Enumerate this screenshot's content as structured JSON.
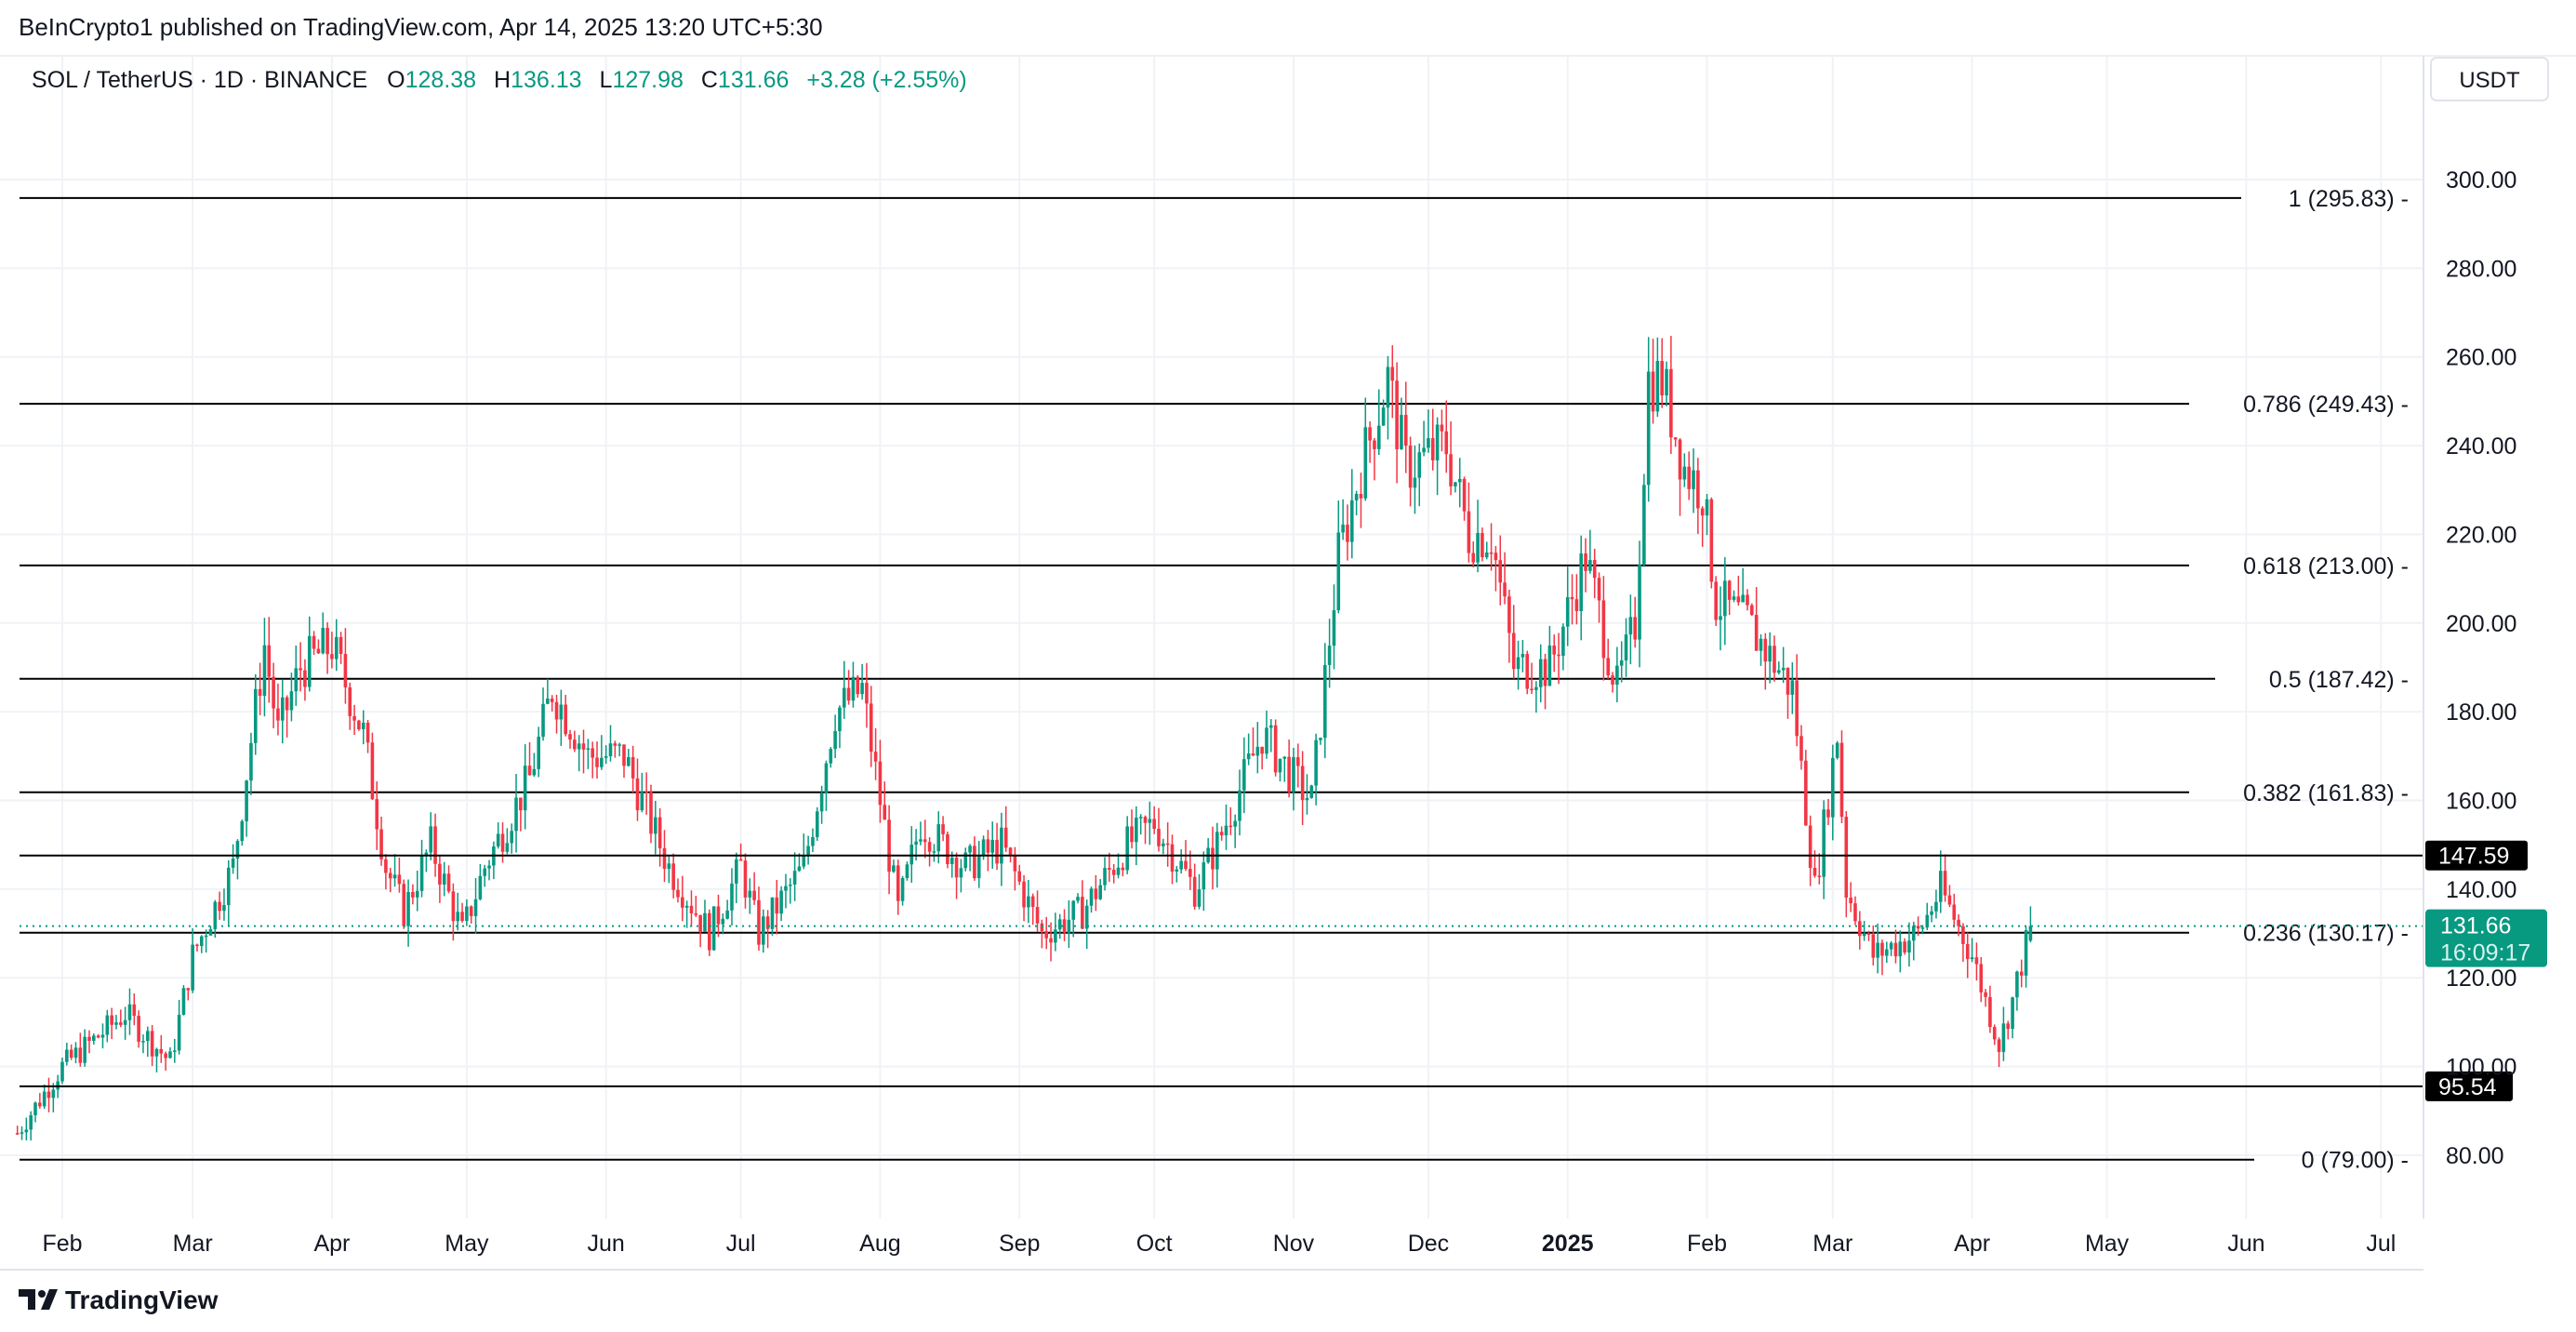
{
  "publish_line": "BeInCrypto1 published on TradingView.com, Apr 14, 2025 13:20 UTC+5:30",
  "symbol": {
    "title": "SOL / TetherUS · 1D · BINANCE",
    "o_label": "O",
    "o": "128.38",
    "h_label": "H",
    "h": "136.13",
    "l_label": "L",
    "l": "127.98",
    "c_label": "C",
    "c": "131.66",
    "change": "+3.28 (+2.55%)"
  },
  "currency_button": "USDT",
  "footer_brand": "TradingView",
  "colors": {
    "up": "#089981",
    "down": "#f23645",
    "line": "#000000",
    "badge": "#089981"
  },
  "chart_data": {
    "type": "candlestick",
    "title": "SOL / TetherUS · 1D · BINANCE",
    "ylabel": "USDT",
    "ylim": [
      70,
      305
    ],
    "y_ticks": [
      "80.00",
      "100.00",
      "120.00",
      "140.00",
      "160.00",
      "180.00",
      "200.00",
      "220.00",
      "240.00",
      "260.00",
      "280.00",
      "300.00"
    ],
    "x_ticks": [
      {
        "label": "Feb",
        "date": "2024-02-01"
      },
      {
        "label": "Mar",
        "date": "2024-03-01"
      },
      {
        "label": "Apr",
        "date": "2024-04-01"
      },
      {
        "label": "May",
        "date": "2024-05-01"
      },
      {
        "label": "Jun",
        "date": "2024-06-01"
      },
      {
        "label": "Jul",
        "date": "2024-07-01"
      },
      {
        "label": "Aug",
        "date": "2024-08-01"
      },
      {
        "label": "Sep",
        "date": "2024-09-01"
      },
      {
        "label": "Oct",
        "date": "2024-10-01"
      },
      {
        "label": "Nov",
        "date": "2024-11-01"
      },
      {
        "label": "Dec",
        "date": "2024-12-01"
      },
      {
        "label": "2025",
        "date": "2025-01-01",
        "bold": true
      },
      {
        "label": "Feb",
        "date": "2025-02-01"
      },
      {
        "label": "Mar",
        "date": "2025-03-01"
      },
      {
        "label": "Apr",
        "date": "2025-04-01"
      },
      {
        "label": "May",
        "date": "2025-05-01"
      },
      {
        "label": "Jun",
        "date": "2025-06-01"
      },
      {
        "label": "Jul",
        "date": "2025-07-01"
      }
    ],
    "approx_closes": [
      [
        "2024-01-22",
        85
      ],
      [
        "2024-02-01",
        100
      ],
      [
        "2024-02-15",
        112
      ],
      [
        "2024-02-25",
        101
      ],
      [
        "2024-03-01",
        125
      ],
      [
        "2024-03-10",
        145
      ],
      [
        "2024-03-17",
        195
      ],
      [
        "2024-03-20",
        175
      ],
      [
        "2024-03-25",
        190
      ],
      [
        "2024-04-01",
        195
      ],
      [
        "2024-04-08",
        175
      ],
      [
        "2024-04-13",
        145
      ],
      [
        "2024-04-17",
        135
      ],
      [
        "2024-04-23",
        150
      ],
      [
        "2024-04-30",
        130
      ],
      [
        "2024-05-05",
        145
      ],
      [
        "2024-05-15",
        165
      ],
      [
        "2024-05-20",
        185
      ],
      [
        "2024-05-28",
        170
      ],
      [
        "2024-06-05",
        170
      ],
      [
        "2024-06-15",
        145
      ],
      [
        "2024-06-24",
        130
      ],
      [
        "2024-07-01",
        145
      ],
      [
        "2024-07-05",
        130
      ],
      [
        "2024-07-15",
        145
      ],
      [
        "2024-07-22",
        180
      ],
      [
        "2024-07-28",
        185
      ],
      [
        "2024-08-05",
        135
      ],
      [
        "2024-08-10",
        155
      ],
      [
        "2024-08-20",
        145
      ],
      [
        "2024-08-28",
        150
      ],
      [
        "2024-09-06",
        130
      ],
      [
        "2024-09-15",
        135
      ],
      [
        "2024-09-25",
        150
      ],
      [
        "2024-10-01",
        155
      ],
      [
        "2024-10-10",
        140
      ],
      [
        "2024-10-15",
        150
      ],
      [
        "2024-10-25",
        175
      ],
      [
        "2024-11-01",
        165
      ],
      [
        "2024-11-05",
        160
      ],
      [
        "2024-11-11",
        215
      ],
      [
        "2024-11-16",
        235
      ],
      [
        "2024-11-22",
        255
      ],
      [
        "2024-11-26",
        235
      ],
      [
        "2024-12-05",
        240
      ],
      [
        "2024-12-10",
        220
      ],
      [
        "2024-12-15",
        220
      ],
      [
        "2024-12-20",
        190
      ],
      [
        "2024-12-28",
        190
      ],
      [
        "2025-01-05",
        215
      ],
      [
        "2025-01-12",
        185
      ],
      [
        "2025-01-16",
        200
      ],
      [
        "2025-01-19",
        255
      ],
      [
        "2025-01-22",
        255
      ],
      [
        "2025-01-27",
        235
      ],
      [
        "2025-01-31",
        230
      ],
      [
        "2025-02-03",
        205
      ],
      [
        "2025-02-10",
        200
      ],
      [
        "2025-02-20",
        185
      ],
      [
        "2025-02-25",
        140
      ],
      [
        "2025-03-02",
        175
      ],
      [
        "2025-03-04",
        140
      ],
      [
        "2025-03-10",
        125
      ],
      [
        "2025-03-20",
        130
      ],
      [
        "2025-03-25",
        140
      ],
      [
        "2025-04-01",
        125
      ],
      [
        "2025-04-07",
        105
      ],
      [
        "2025-04-10",
        115
      ],
      [
        "2025-04-14",
        131.66
      ]
    ],
    "last_candle": {
      "date": "2025-04-14",
      "open": 128.38,
      "high": 136.13,
      "low": 127.98,
      "close": 131.66
    },
    "fib_levels": [
      {
        "ratio": "1",
        "value": 295.83,
        "label": "1 (295.83)"
      },
      {
        "ratio": "0.786",
        "value": 249.43,
        "label": "0.786 (249.43)"
      },
      {
        "ratio": "0.618",
        "value": 213.0,
        "label": "0.618 (213.00)"
      },
      {
        "ratio": "0.5",
        "value": 187.42,
        "label": "0.5 (187.42)"
      },
      {
        "ratio": "0.382",
        "value": 161.83,
        "label": "0.382 (161.83)"
      },
      {
        "ratio": "0.236",
        "value": 130.17,
        "label": "0.236 (130.17)"
      },
      {
        "ratio": "0",
        "value": 79.0,
        "label": "0 (79.00)"
      }
    ],
    "horizontal_lines": [
      {
        "value": 147.59,
        "label": "147.59"
      },
      {
        "value": 95.54,
        "label": "95.54"
      }
    ],
    "current_price": {
      "value": 131.66,
      "label": "131.66",
      "countdown": "16:09:17"
    }
  }
}
